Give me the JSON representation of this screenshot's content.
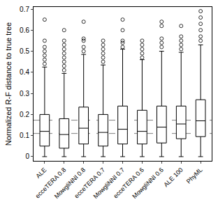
{
  "chart_data": {
    "type": "box",
    "y_label": "Normalized R-F distance to true tree",
    "categories": [
      "ALE",
      "ecceTERA 0.8",
      "MowgliNNI 0.8",
      "ecceTERA 0.7",
      "MowgliNNI 0.7",
      "ecceTERA 0.6",
      "MowgliNNI 0.6",
      "ALE 100",
      "PhyML"
    ],
    "lower": [
      0,
      0,
      0,
      0,
      0,
      0,
      0,
      0,
      0
    ],
    "q1": [
      0.05,
      0.04,
      0.06,
      0.05,
      0.06,
      0.06,
      0.065,
      0.085,
      0.095
    ],
    "median": [
      0.12,
      0.105,
      0.135,
      0.115,
      0.13,
      0.12,
      0.14,
      0.155,
      0.17
    ],
    "q3": [
      0.2,
      0.18,
      0.235,
      0.2,
      0.24,
      0.22,
      0.24,
      0.24,
      0.27
    ],
    "upper": [
      0.425,
      0.395,
      0.485,
      0.435,
      0.51,
      0.46,
      0.5,
      0.495,
      0.53
    ],
    "outliers": [
      [
        0.44,
        0.46,
        0.48,
        0.5,
        0.52,
        0.55,
        0.65
      ],
      [
        0.41,
        0.43,
        0.45,
        0.47,
        0.49,
        0.51,
        0.53,
        0.55,
        0.6
      ],
      [
        0.5,
        0.52,
        0.55,
        0.56,
        0.64
      ],
      [
        0.45,
        0.47,
        0.49,
        0.51,
        0.53,
        0.55
      ],
      [
        0.52,
        0.54,
        0.55,
        0.6,
        0.65
      ],
      [
        0.47,
        0.49,
        0.51,
        0.53,
        0.55
      ],
      [
        0.52,
        0.54,
        0.56,
        0.62,
        0.64
      ],
      [
        0.51,
        0.53,
        0.55,
        0.57,
        0.62
      ],
      [
        0.55,
        0.57,
        0.6,
        0.63,
        0.66,
        0.69
      ]
    ],
    "reference_lines": [
      0.173,
      0.11
    ],
    "line_style": "dashed",
    "color": "#000000",
    "ylim": [
      -0.02,
      0.71
    ],
    "yticks": [
      0,
      0.1,
      0.2,
      0.3,
      0.4,
      0.5,
      0.6,
      0.7
    ],
    "grid": false
  }
}
